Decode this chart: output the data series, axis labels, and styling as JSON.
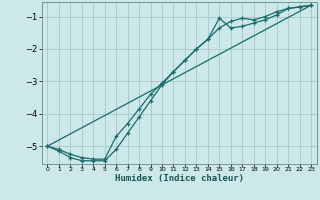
{
  "xlabel": "Humidex (Indice chaleur)",
  "ylabel": "",
  "bg_color": "#cce8e8",
  "grid_color": "#aacccc",
  "line_color": "#1a6b6b",
  "xlim": [
    -0.5,
    23.5
  ],
  "ylim": [
    -5.55,
    -0.55
  ],
  "yticks": [
    -5,
    -4,
    -3,
    -2,
    -1
  ],
  "xticks": [
    0,
    1,
    2,
    3,
    4,
    5,
    6,
    7,
    8,
    9,
    10,
    11,
    12,
    13,
    14,
    15,
    16,
    17,
    18,
    19,
    20,
    21,
    22,
    23
  ],
  "line1_x": [
    0,
    1,
    2,
    3,
    4,
    5,
    6,
    7,
    8,
    9,
    10,
    11,
    12,
    13,
    14,
    15,
    16,
    17,
    18,
    19,
    20,
    21,
    22,
    23
  ],
  "line1_y": [
    -5.0,
    -5.1,
    -5.25,
    -5.35,
    -5.4,
    -5.4,
    -4.7,
    -4.3,
    -3.85,
    -3.4,
    -3.05,
    -2.7,
    -2.35,
    -2.0,
    -1.7,
    -1.35,
    -1.15,
    -1.05,
    -1.1,
    -1.0,
    -0.85,
    -0.75,
    -0.7,
    -0.65
  ],
  "line2_x": [
    0,
    1,
    2,
    3,
    4,
    5,
    6,
    7,
    8,
    9,
    10,
    11,
    12,
    13,
    14,
    15,
    16,
    17,
    18,
    19,
    20,
    21,
    22,
    23
  ],
  "line2_y": [
    -5.0,
    -5.15,
    -5.35,
    -5.45,
    -5.45,
    -5.45,
    -5.1,
    -4.6,
    -4.1,
    -3.6,
    -3.1,
    -2.7,
    -2.35,
    -2.0,
    -1.7,
    -1.05,
    -1.35,
    -1.3,
    -1.2,
    -1.1,
    -0.95,
    -0.75,
    -0.7,
    -0.65
  ],
  "line3_x": [
    0,
    23
  ],
  "line3_y": [
    -5.0,
    -0.65
  ]
}
